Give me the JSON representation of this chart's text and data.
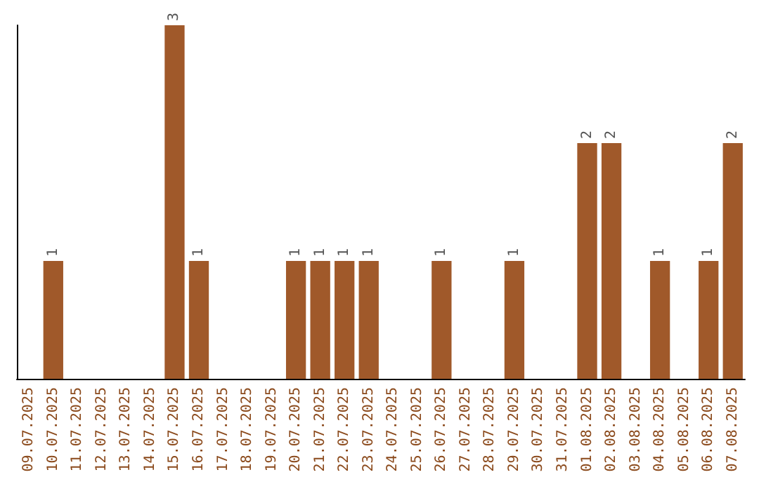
{
  "chart_data": {
    "type": "bar",
    "categories": [
      "09.07.2025",
      "10.07.2025",
      "11.07.2025",
      "12.07.2025",
      "13.07.2025",
      "14.07.2025",
      "15.07.2025",
      "16.07.2025",
      "17.07.2025",
      "18.07.2025",
      "19.07.2025",
      "20.07.2025",
      "21.07.2025",
      "22.07.2025",
      "23.07.2025",
      "24.07.2025",
      "25.07.2025",
      "26.07.2025",
      "27.07.2025",
      "28.07.2025",
      "29.07.2025",
      "30.07.2025",
      "31.07.2025",
      "01.08.2025",
      "02.08.2025",
      "03.08.2025",
      "04.08.2025",
      "05.08.2025",
      "06.08.2025",
      "07.08.2025"
    ],
    "values": [
      0,
      1,
      0,
      0,
      0,
      0,
      3,
      1,
      0,
      0,
      0,
      1,
      1,
      1,
      1,
      0,
      0,
      1,
      0,
      0,
      1,
      0,
      0,
      2,
      2,
      0,
      1,
      0,
      1,
      2
    ],
    "color": "#a0592a",
    "value_labels": [
      null,
      "1",
      null,
      null,
      null,
      null,
      "3",
      "1",
      null,
      null,
      null,
      "1",
      "1",
      "1",
      "1",
      null,
      null,
      "1",
      null,
      null,
      "1",
      null,
      null,
      "2",
      "2",
      null,
      "1",
      null,
      "1",
      "2"
    ],
    "tick_labels": "x"
  }
}
